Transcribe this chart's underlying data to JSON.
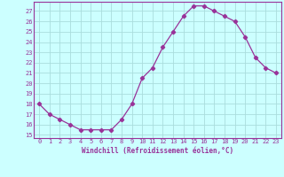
{
  "x": [
    0,
    1,
    2,
    3,
    4,
    5,
    6,
    7,
    8,
    9,
    10,
    11,
    12,
    13,
    14,
    15,
    16,
    17,
    18,
    19,
    20,
    21,
    22,
    23
  ],
  "y": [
    18,
    17,
    16.5,
    16,
    15.5,
    15.5,
    15.5,
    15.5,
    16.5,
    18,
    20.5,
    21.5,
    23.5,
    25,
    26.5,
    27.5,
    27.5,
    27,
    26.5,
    26,
    24.5,
    22.5,
    21.5,
    21
  ],
  "line_color": "#993399",
  "marker": "D",
  "marker_size": 2.2,
  "xlabel": "Windchill (Refroidissement éolien,°C)",
  "yticks": [
    15,
    16,
    17,
    18,
    19,
    20,
    21,
    22,
    23,
    24,
    25,
    26,
    27
  ],
  "xticks": [
    0,
    1,
    2,
    3,
    4,
    5,
    6,
    7,
    8,
    9,
    10,
    11,
    12,
    13,
    14,
    15,
    16,
    17,
    18,
    19,
    20,
    21,
    22,
    23
  ],
  "bg_color": "#ccffff",
  "grid_color": "#aadddd",
  "tick_color": "#993399",
  "xlabel_color": "#993399",
  "ymin": 14.7,
  "ymax": 27.9,
  "xmin": -0.5,
  "xmax": 23.5
}
